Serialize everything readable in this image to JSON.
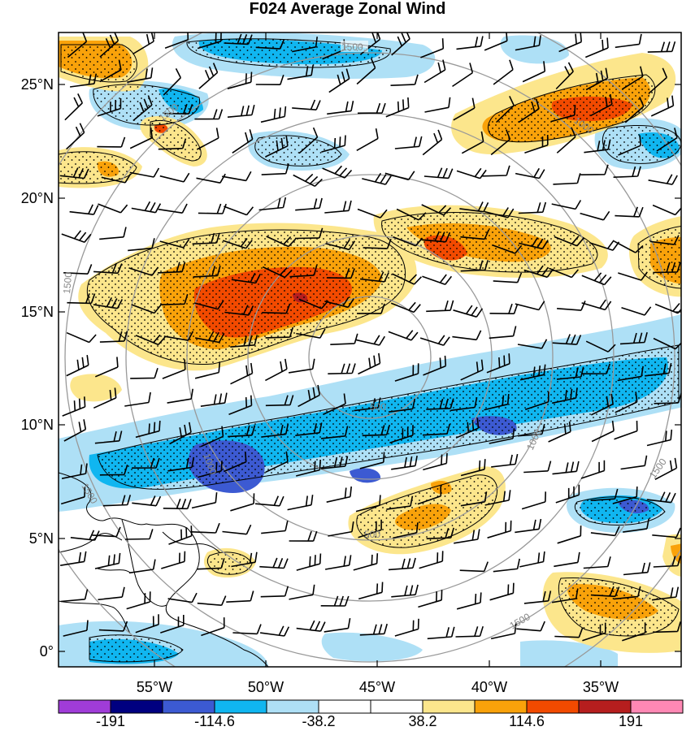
{
  "title": "F024 Average Zonal Wind",
  "lat_labels": [
    "25°N",
    "20°N",
    "15°N",
    "10°N",
    "5°N",
    "0°"
  ],
  "lon_labels": [
    "55°W",
    "50°W",
    "45°W",
    "40°W",
    "35°W"
  ],
  "ring_labels": [
    "1500",
    "1500",
    "1500",
    "1500",
    "1500",
    "1500",
    "1000",
    "1000",
    "1000",
    "500",
    "500"
  ],
  "colorbar": {
    "colors": [
      "#a03cd8",
      "#000080",
      "#3c5ad2",
      "#10b6f0",
      "#aee0f6",
      "#ffffff",
      "#ffffff",
      "#fce68c",
      "#f9a20a",
      "#f24a00",
      "#b61e1e",
      "#ff88b4"
    ],
    "labels": [
      "-191",
      "-114.6",
      "-38.2",
      "38.2",
      "114.6",
      "191"
    ]
  },
  "colors": {
    "strong_neg": "#3c5ad2",
    "neg": "#10b6f0",
    "weak_neg": "#aee0f6",
    "weak_pos": "#fce68c",
    "pos": "#f9a20a",
    "strong_pos": "#f24a00",
    "max_pos": "#b61e1e",
    "ring": "#999999",
    "barb": "#000000"
  }
}
